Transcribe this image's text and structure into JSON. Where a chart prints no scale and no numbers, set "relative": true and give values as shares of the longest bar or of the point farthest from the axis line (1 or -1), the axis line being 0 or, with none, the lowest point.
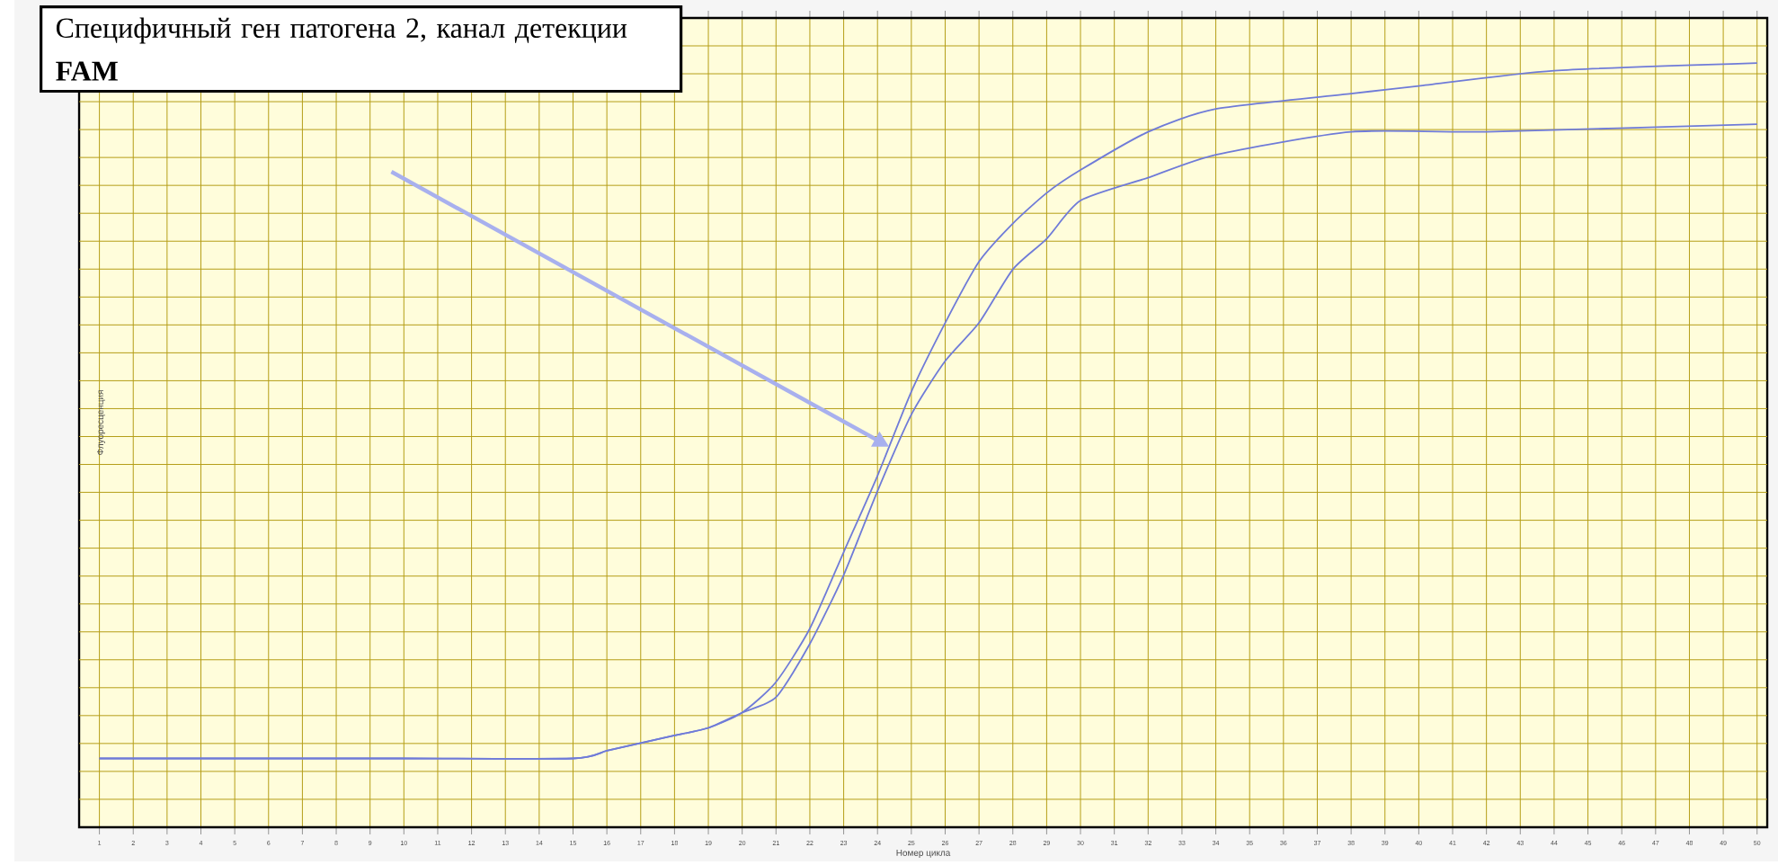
{
  "chart_data": {
    "type": "line",
    "relative": true,
    "xlabel": "Номер цикла",
    "ylabel": "Флуоресценция",
    "xlim": [
      0.4,
      50.3
    ],
    "xticks": [
      1,
      2,
      3,
      4,
      5,
      6,
      7,
      8,
      9,
      10,
      11,
      12,
      13,
      14,
      15,
      16,
      17,
      18,
      19,
      20,
      21,
      22,
      23,
      24,
      25,
      26,
      27,
      28,
      29,
      30,
      31,
      32,
      33,
      34,
      35,
      36,
      37,
      38,
      39,
      40,
      41,
      42,
      43,
      44,
      45,
      46,
      47,
      48,
      49,
      50
    ],
    "grid": true,
    "marker": "none",
    "line_style": "solid",
    "series": [
      {
        "color": "#6f7bd8",
        "x": [
          1,
          5,
          10,
          15,
          16,
          17,
          18,
          19,
          20,
          21,
          22,
          23,
          24,
          25,
          26,
          27,
          28,
          29,
          30,
          32,
          34,
          38,
          40,
          44,
          50
        ],
        "values": [
          0.09,
          0.09,
          0.09,
          0.09,
          0.1,
          0.11,
          0.12,
          0.13,
          0.15,
          0.19,
          0.26,
          0.36,
          0.46,
          0.57,
          0.66,
          0.74,
          0.79,
          0.83,
          0.86,
          0.91,
          0.94,
          0.96,
          0.97,
          0.99,
          1.0
        ]
      },
      {
        "color": "#6f7bd8",
        "x": [
          1,
          5,
          10,
          15,
          16,
          17,
          18,
          19,
          20,
          21,
          22,
          23,
          24,
          25,
          26,
          27,
          28,
          29,
          30,
          32,
          34,
          38,
          42,
          50
        ],
        "values": [
          0.09,
          0.09,
          0.09,
          0.09,
          0.1,
          0.11,
          0.12,
          0.13,
          0.15,
          0.17,
          0.24,
          0.33,
          0.44,
          0.54,
          0.61,
          0.66,
          0.73,
          0.77,
          0.82,
          0.85,
          0.88,
          0.91,
          0.91,
          0.92
        ]
      }
    ],
    "annotations": [
      "Специфичный ген патогена 2, канал детекции **FAM**"
    ]
  }
}
